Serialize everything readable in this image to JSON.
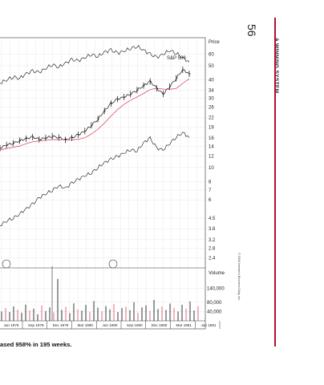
{
  "page": {
    "number": "56",
    "section": "A WINNING SYSTEM",
    "caption": "ased 958% in 195 weeks.",
    "copyright": "© 2008 Investor's Business Daily, Inc."
  },
  "colors": {
    "price": "#111111",
    "moving_average": "#d6364e",
    "volume_bar": "#222222",
    "volume_bar_up": "#e05a6e",
    "grid": "#bbbbbb",
    "accent_rule": "#b0102a"
  },
  "chart_data": {
    "type": "line",
    "title": "",
    "price_label": "Price",
    "volume_label": "Volume",
    "sp500_label": "S&P 500",
    "price_scale": "log",
    "ylim": [
      2.1,
      75
    ],
    "price_ticks": [
      "60",
      "50",
      "40",
      "34",
      "30",
      "26",
      "22",
      "19",
      "16",
      "14",
      "12",
      "10",
      "8",
      "7",
      "6",
      "4.5",
      "3.8",
      "3.2",
      "2.8",
      "2.4"
    ],
    "volume_ticks": [
      "140,000",
      "80,000",
      "40,000"
    ],
    "x_labels": [
      "Jun 1979",
      "Sep 1979",
      "Dec 1979",
      "Mar 1980",
      "Jun 1980",
      "Sep 1980",
      "Dec 1980",
      "Mar 1981",
      "Jun 1981"
    ],
    "grid": true,
    "series": [
      {
        "name": "S&P 500",
        "values": [
          38,
          40,
          42,
          41,
          44,
          46,
          45,
          48,
          51,
          49,
          52,
          55,
          54,
          57,
          60,
          58,
          62,
          64,
          61,
          63,
          66,
          68,
          64,
          60,
          57,
          60,
          64,
          61,
          57,
          53
        ]
      },
      {
        "values": [
          13.6,
          14.3,
          14.7,
          15.3,
          15.8,
          16.2,
          15.6,
          16.0,
          16.4,
          16.1,
          15.5,
          16.0,
          16.8,
          17.8,
          19.5,
          21.5,
          24.5,
          27.5,
          29.5,
          30.5,
          32.0,
          34.0,
          36.5,
          39.0,
          35.0,
          32.0,
          36.0,
          41.0,
          47.0,
          44.0
        ]
      },
      {
        "values": [
          4.0,
          4.3,
          4.5,
          4.8,
          5.2,
          5.6,
          6.2,
          6.6,
          7.0,
          7.5,
          7.2,
          7.8,
          8.3,
          8.8,
          9.2,
          10.0,
          10.8,
          11.4,
          11.9,
          12.6,
          13.3,
          13.0,
          14.8,
          15.9,
          13.6,
          13.2,
          14.7,
          16.2,
          17.4,
          16.1
        ]
      }
    ],
    "volume": [
      40,
      55,
      38,
      62,
      48,
      35,
      70,
      45,
      52,
      28,
      66,
      42,
      58,
      36,
      180,
      47,
      60,
      33,
      75,
      50,
      44,
      68,
      39,
      85,
      57,
      41,
      64,
      49,
      72,
      38,
      55,
      61,
      46,
      80,
      35,
      58,
      67,
      43,
      90,
      51,
      62,
      47,
      74,
      56,
      40,
      69,
      52,
      83,
      45,
      63
    ]
  }
}
